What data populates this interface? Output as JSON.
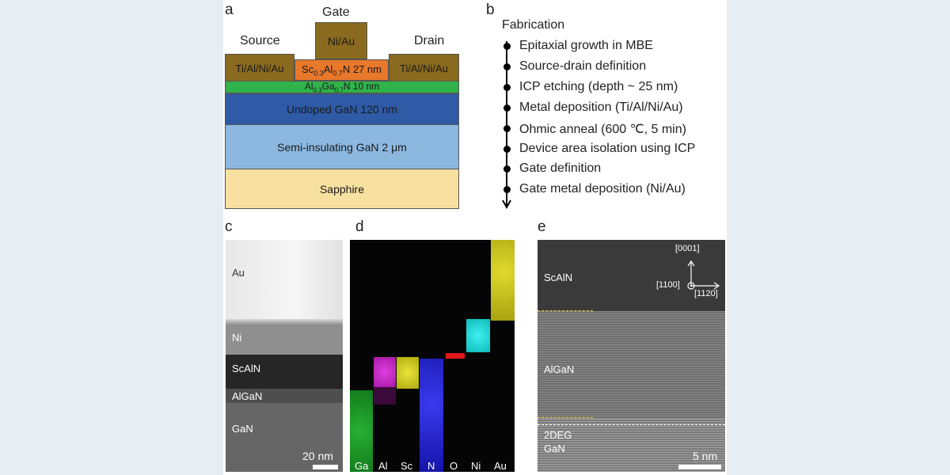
{
  "panels": {
    "a": "a",
    "b": "b",
    "c": "c",
    "d": "d",
    "e": "e"
  },
  "schematic": {
    "gate": "Gate",
    "source": "Source",
    "drain": "Drain",
    "gate_metal": "Ni/Au",
    "source_contact": "Ti/Al/Ni/Au",
    "drain_contact": "Ti/Al/Ni/Au",
    "scaln": {
      "pre": "Sc",
      "sub1": "0.3",
      "mid": "Al",
      "sub2": "0.7",
      "post": "N 27 nm"
    },
    "algan": {
      "pre": "Al",
      "sub1": "0.3",
      "mid": "Ga",
      "sub2": "0.7",
      "post": "N 10 nm"
    },
    "undoped": "Undoped GaN 120 nm",
    "semi": "Semi-insulating GaN 2 μm",
    "sapphire": "Sapphire",
    "colors": {
      "metal": "#8a6a1e",
      "scaln": "#e8782a",
      "algan": "#2fb34a",
      "undoped": "#2f5aa6",
      "semi": "#8cb8e0",
      "sapphire": "#f7e0a0"
    }
  },
  "fabrication": {
    "title": "Fabrication",
    "steps": [
      "Epitaxial growth in MBE",
      "Source-drain definition",
      "ICP etching (depth ~ 25 nm)",
      "Metal deposition (Ti/Al/Ni/Au)",
      "Ohmic anneal (600 ℃, 5 min)",
      "Device area isolation using ICP",
      "Gate definition",
      "Gate metal deposition (Ni/Au)"
    ]
  },
  "panel_c": {
    "layers": [
      "Au",
      "Ni",
      "ScAlN",
      "AlGaN",
      "GaN"
    ],
    "scale": "20 nm"
  },
  "panel_d": {
    "elements": [
      "Ga",
      "Al",
      "Sc",
      "N",
      "O",
      "Ni",
      "Au"
    ],
    "colors": {
      "Ga": "#1e9a2a",
      "Al": "#d22ed2",
      "Sc": "#d8d21e",
      "N": "#2222dd",
      "O": "#e01818",
      "Ni": "#18e0e0",
      "Au": "#d6d01e"
    }
  },
  "panel_e": {
    "layers": [
      "ScAlN",
      "AlGaN",
      "2DEG",
      "GaN"
    ],
    "axes": {
      "up": "[0001]",
      "left": "[1100]",
      "right": "[1120]"
    },
    "scale": "5 nm"
  }
}
